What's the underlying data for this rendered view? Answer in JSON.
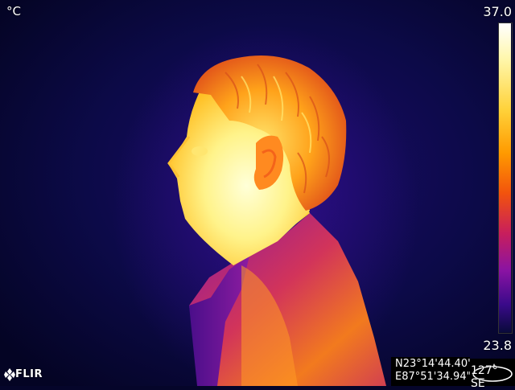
{
  "thermal": {
    "unit": "°C",
    "scale_max": "37.0",
    "scale_min": "23.8",
    "palette": [
      "#ffffff",
      "#fff6a8",
      "#ffd23a",
      "#ff9a00",
      "#f2530d",
      "#c81e5c",
      "#8a13a3",
      "#3a0a8a",
      "#0a0a3c"
    ]
  },
  "gps": {
    "latitude": "N23°14'44.40\"",
    "longitude": "E87°51'34.94\""
  },
  "compass": {
    "heading": "127° SE"
  },
  "brand": {
    "name": "FLIR"
  }
}
